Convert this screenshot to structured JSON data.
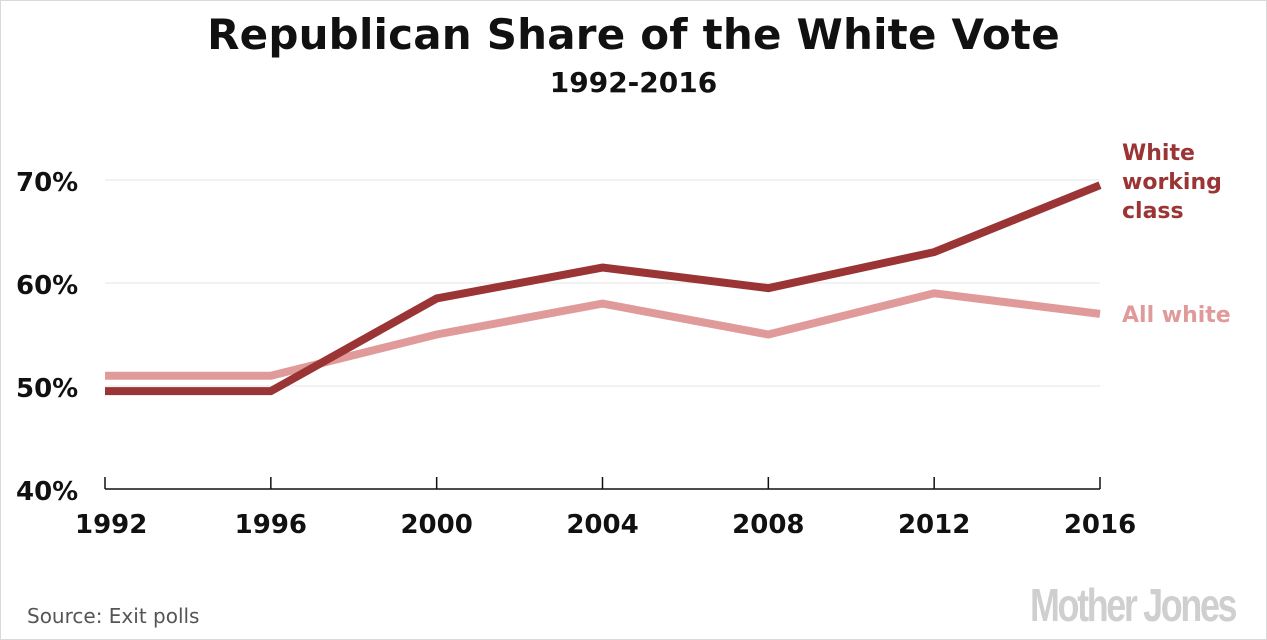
{
  "title": "Republican Share of the White Vote",
  "subtitle": "1992-2016",
  "source": "Source: Exit polls",
  "logo": "Mother Jones",
  "colors": {
    "working_class": "#9b3535",
    "all_white": "#e09a9a",
    "axis": "#111111",
    "grid": "#e6e6e6"
  },
  "chart_data": {
    "type": "line",
    "x": [
      1992,
      1996,
      2000,
      2004,
      2008,
      2012,
      2016
    ],
    "ylim": [
      40,
      70
    ],
    "yticks": [
      "40%",
      "50%",
      "60%",
      "70%"
    ],
    "series": [
      {
        "name": "White working class",
        "label_lines": [
          "White",
          "working",
          "class"
        ],
        "values": [
          49.5,
          49.5,
          58.5,
          61.5,
          59.5,
          63,
          69.5
        ]
      },
      {
        "name": "All white",
        "label_lines": [
          "All white"
        ],
        "values": [
          51,
          51,
          55,
          58,
          55,
          59,
          57
        ]
      }
    ],
    "grid": true,
    "legend": "direct labels at line ends"
  }
}
